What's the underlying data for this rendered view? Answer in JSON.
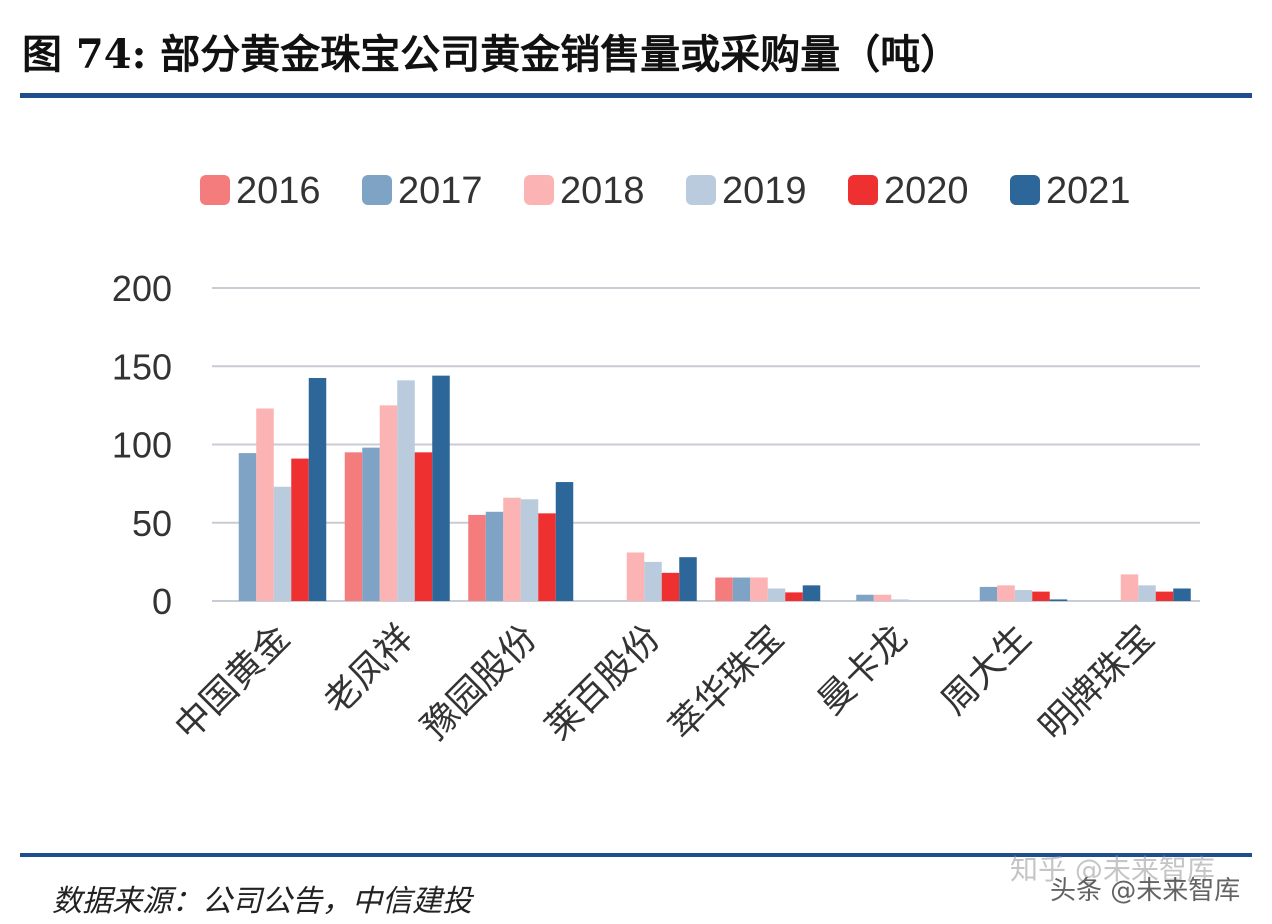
{
  "title": "图 74: 部分黄金珠宝公司黄金销售量或采购量（吨）",
  "source": "数据来源：公司公告，中信建投",
  "watermarks": [
    "知乎 @未来智库",
    "头条 @未来智库"
  ],
  "chart_data": {
    "type": "bar",
    "categories": [
      "中国黄金",
      "老凤祥",
      "豫园股份",
      "莱百股份",
      "萃华珠宝",
      "曼卡龙",
      "周大生",
      "明牌珠宝"
    ],
    "series": [
      {
        "name": "2016",
        "color": "#f47c7c",
        "values": [
          0,
          95,
          55,
          0,
          15,
          0,
          0,
          0
        ]
      },
      {
        "name": "2017",
        "color": "#7fa3c4",
        "values": [
          94.5,
          98,
          57,
          0,
          15,
          4,
          9,
          0
        ]
      },
      {
        "name": "2018",
        "color": "#fbb3b3",
        "values": [
          123,
          125,
          66,
          31,
          15,
          4,
          10,
          17
        ]
      },
      {
        "name": "2019",
        "color": "#b9cbdc",
        "values": [
          73,
          141,
          65,
          25,
          8,
          1,
          7,
          10
        ]
      },
      {
        "name": "2020",
        "color": "#ee3030",
        "values": [
          91,
          95,
          56,
          18,
          5.5,
          0,
          6,
          6
        ]
      },
      {
        "name": "2021",
        "color": "#2d6699",
        "values": [
          142.5,
          144,
          76,
          28,
          10,
          0,
          1,
          8
        ]
      }
    ],
    "yticks": [
      0,
      50,
      100,
      150,
      200
    ],
    "ylim": [
      0,
      200
    ],
    "grid": true,
    "legend": "top"
  }
}
